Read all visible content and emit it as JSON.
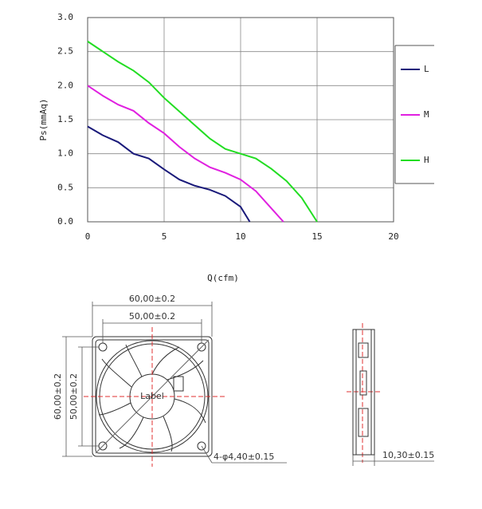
{
  "chart_data": {
    "type": "line",
    "x_label": "Q(cfm)",
    "y_label": "Ps(mmAq)",
    "xlim": [
      0,
      20
    ],
    "xticks": [
      0,
      5,
      10,
      15,
      20
    ],
    "ylim": [
      0,
      3
    ],
    "yticks": [
      {
        "value": 0,
        "label": "0.0"
      },
      0.5,
      {
        "value": 1,
        "label": "1.0"
      },
      1.5,
      {
        "value": 2,
        "label": "2.0"
      },
      2.5,
      {
        "value": 3,
        "label": "3.0"
      }
    ],
    "grid": true,
    "legend": "right",
    "series": [
      {
        "name": "L",
        "color": "#1a1a7a",
        "x": [
          0,
          1,
          2,
          3,
          4,
          5,
          6,
          7,
          8,
          9,
          10,
          10.6
        ],
        "values": [
          1.4,
          1.27,
          1.17,
          1.0,
          0.93,
          0.77,
          0.62,
          0.53,
          0.47,
          0.38,
          0.22,
          0
        ]
      },
      {
        "name": "M",
        "color": "#e020e0",
        "x": [
          0,
          1,
          2,
          3,
          4,
          5,
          6,
          7,
          8,
          9,
          10,
          11,
          12,
          12.8
        ],
        "values": [
          2.0,
          1.85,
          1.72,
          1.63,
          1.45,
          1.3,
          1.1,
          0.93,
          0.8,
          0.72,
          0.62,
          0.45,
          0.2,
          0
        ]
      },
      {
        "name": "H",
        "color": "#22dd22",
        "x": [
          0,
          1,
          2,
          3,
          4,
          5,
          6,
          7,
          8,
          9,
          10,
          11,
          12,
          13,
          14,
          15
        ],
        "values": [
          2.65,
          2.5,
          2.35,
          2.22,
          2.05,
          1.82,
          1.62,
          1.42,
          1.22,
          1.07,
          1.0,
          0.93,
          0.78,
          0.6,
          0.35,
          0
        ]
      }
    ]
  },
  "drawing": {
    "width_outer": "60,00±0.2",
    "width_hole": "50,00±0.2",
    "height_outer": "60,00±0.2",
    "height_hole": "50,00±0.2",
    "holes": "4-φ4,40±0.15",
    "depth": "10,30±0.15",
    "hub_label": "Label"
  }
}
